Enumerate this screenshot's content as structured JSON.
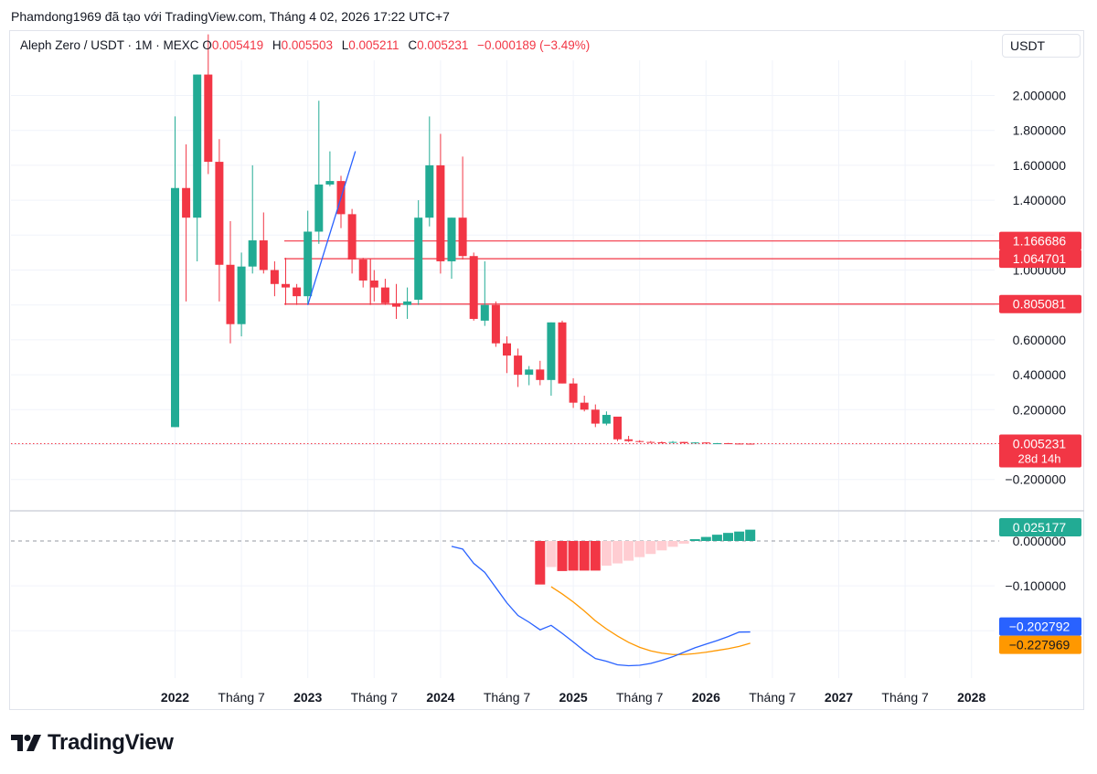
{
  "header": {
    "credit": "Phamdong1969 đã tạo với TradingView.com, Tháng 4 02, 2026 17:22 UTC+7"
  },
  "legend": {
    "symbol": "Aleph Zero / USDT · 1M · MEXC",
    "o_key": "O",
    "o": "0.005419",
    "h_key": "H",
    "h": "0.005503",
    "l_key": "L",
    "l": "0.005211",
    "c_key": "C",
    "c": "0.005231",
    "change": "−0.000189 (−3.49%)"
  },
  "currency_button": "USDT",
  "logo": {
    "text": "TradingView"
  },
  "colors": {
    "up": "#22ab94",
    "down": "#f23645",
    "macd": "#2962ff",
    "signal": "#ff9800",
    "hist_down_light": "#ffcdd2"
  },
  "chart_data": [
    {
      "type": "candlestick",
      "title": "Aleph Zero / USDT · 1M · MEXC",
      "ylim": [
        -0.25,
        2.2
      ],
      "y_ticks": [
        "2.000000",
        "1.800000",
        "1.600000",
        "1.400000",
        "1.000000",
        "0.600000",
        "0.400000",
        "0.200000",
        "−0.200000"
      ],
      "y_tick_values": [
        2.0,
        1.8,
        1.6,
        1.4,
        1.0,
        0.6,
        0.4,
        0.2,
        -0.2
      ],
      "x_labels": [
        "2022",
        "Tháng 7",
        "2023",
        "Tháng 7",
        "2024",
        "Tháng 7",
        "2025",
        "Tháng 7",
        "2026",
        "Tháng 7",
        "2027",
        "Tháng 7",
        "2028"
      ],
      "x_label_months": [
        0,
        6,
        12,
        18,
        24,
        30,
        36,
        42,
        48,
        54,
        60,
        66,
        72
      ],
      "candles": [
        {
          "m": 0,
          "o": 0.1,
          "h": 1.88,
          "l": 0.1,
          "c": 1.47
        },
        {
          "m": 1,
          "o": 1.47,
          "h": 1.72,
          "l": 0.82,
          "c": 1.3
        },
        {
          "m": 2,
          "o": 1.3,
          "h": 2.12,
          "l": 1.05,
          "c": 2.12
        },
        {
          "m": 3,
          "o": 2.12,
          "h": 2.35,
          "l": 1.55,
          "c": 1.62
        },
        {
          "m": 4,
          "o": 1.62,
          "h": 1.75,
          "l": 0.82,
          "c": 1.03
        },
        {
          "m": 5,
          "o": 1.03,
          "h": 1.28,
          "l": 0.58,
          "c": 0.69
        },
        {
          "m": 6,
          "o": 0.69,
          "h": 1.1,
          "l": 0.62,
          "c": 1.02
        },
        {
          "m": 7,
          "o": 1.02,
          "h": 1.6,
          "l": 0.98,
          "c": 1.17
        },
        {
          "m": 8,
          "o": 1.17,
          "h": 1.33,
          "l": 0.98,
          "c": 1.0
        },
        {
          "m": 9,
          "o": 1.0,
          "h": 1.05,
          "l": 0.85,
          "c": 0.92
        },
        {
          "m": 10,
          "o": 0.92,
          "h": 1.07,
          "l": 0.8,
          "c": 0.9
        },
        {
          "m": 11,
          "o": 0.9,
          "h": 0.92,
          "l": 0.8,
          "c": 0.85
        },
        {
          "m": 12,
          "o": 0.85,
          "h": 1.34,
          "l": 0.8,
          "c": 1.22
        },
        {
          "m": 13,
          "o": 1.22,
          "h": 1.97,
          "l": 1.15,
          "c": 1.49
        },
        {
          "m": 14,
          "o": 1.49,
          "h": 1.68,
          "l": 1.48,
          "c": 1.51
        },
        {
          "m": 15,
          "o": 1.51,
          "h": 1.54,
          "l": 1.24,
          "c": 1.32
        },
        {
          "m": 16,
          "o": 1.32,
          "h": 1.35,
          "l": 0.98,
          "c": 1.06
        },
        {
          "m": 17,
          "o": 1.06,
          "h": 1.07,
          "l": 0.9,
          "c": 0.94
        },
        {
          "m": 18,
          "o": 0.94,
          "h": 1.0,
          "l": 0.82,
          "c": 0.9
        },
        {
          "m": 19,
          "o": 0.9,
          "h": 0.95,
          "l": 0.8,
          "c": 0.81
        },
        {
          "m": 20,
          "o": 0.81,
          "h": 0.92,
          "l": 0.72,
          "c": 0.79
        },
        {
          "m": 21,
          "o": 0.8,
          "h": 0.9,
          "l": 0.72,
          "c": 0.82
        },
        {
          "m": 22,
          "o": 0.83,
          "h": 1.4,
          "l": 0.8,
          "c": 1.3
        },
        {
          "m": 23,
          "o": 1.3,
          "h": 1.88,
          "l": 1.25,
          "c": 1.6
        },
        {
          "m": 24,
          "o": 1.6,
          "h": 1.78,
          "l": 0.98,
          "c": 1.05
        },
        {
          "m": 25,
          "o": 1.05,
          "h": 1.3,
          "l": 0.95,
          "c": 1.3
        },
        {
          "m": 26,
          "o": 1.3,
          "h": 1.65,
          "l": 1.06,
          "c": 1.08
        },
        {
          "m": 27,
          "o": 1.08,
          "h": 1.1,
          "l": 0.71,
          "c": 0.72
        },
        {
          "m": 28,
          "o": 0.71,
          "h": 1.05,
          "l": 0.68,
          "c": 0.8
        },
        {
          "m": 29,
          "o": 0.8,
          "h": 0.82,
          "l": 0.56,
          "c": 0.58
        },
        {
          "m": 30,
          "o": 0.58,
          "h": 0.62,
          "l": 0.41,
          "c": 0.51
        },
        {
          "m": 31,
          "o": 0.51,
          "h": 0.55,
          "l": 0.33,
          "c": 0.4
        },
        {
          "m": 32,
          "o": 0.4,
          "h": 0.45,
          "l": 0.34,
          "c": 0.43
        },
        {
          "m": 33,
          "o": 0.43,
          "h": 0.48,
          "l": 0.34,
          "c": 0.37
        },
        {
          "m": 34,
          "o": 0.37,
          "h": 0.7,
          "l": 0.28,
          "c": 0.7
        },
        {
          "m": 35,
          "o": 0.7,
          "h": 0.71,
          "l": 0.35,
          "c": 0.35
        },
        {
          "m": 36,
          "o": 0.35,
          "h": 0.38,
          "l": 0.21,
          "c": 0.24
        },
        {
          "m": 37,
          "o": 0.24,
          "h": 0.28,
          "l": 0.19,
          "c": 0.2
        },
        {
          "m": 38,
          "o": 0.2,
          "h": 0.23,
          "l": 0.1,
          "c": 0.12
        },
        {
          "m": 39,
          "o": 0.12,
          "h": 0.19,
          "l": 0.11,
          "c": 0.17
        },
        {
          "m": 40,
          "o": 0.16,
          "h": 0.16,
          "l": 0.02,
          "c": 0.03
        },
        {
          "m": 41,
          "o": 0.03,
          "h": 0.05,
          "l": 0.015,
          "c": 0.02
        },
        {
          "m": 42,
          "o": 0.02,
          "h": 0.025,
          "l": 0.012,
          "c": 0.015
        },
        {
          "m": 43,
          "o": 0.015,
          "h": 0.02,
          "l": 0.011,
          "c": 0.013
        },
        {
          "m": 44,
          "o": 0.013,
          "h": 0.018,
          "l": 0.01,
          "c": 0.012
        },
        {
          "m": 45,
          "o": 0.012,
          "h": 0.02,
          "l": 0.009,
          "c": 0.015
        },
        {
          "m": 46,
          "o": 0.015,
          "h": 0.016,
          "l": 0.007,
          "c": 0.008
        },
        {
          "m": 47,
          "o": 0.008,
          "h": 0.014,
          "l": 0.007,
          "c": 0.012
        },
        {
          "m": 48,
          "o": 0.012,
          "h": 0.013,
          "l": 0.006,
          "c": 0.007
        },
        {
          "m": 49,
          "o": 0.007,
          "h": 0.009,
          "l": 0.006,
          "c": 0.008
        },
        {
          "m": 50,
          "o": 0.008,
          "h": 0.009,
          "l": 0.005,
          "c": 0.006
        },
        {
          "m": 51,
          "o": 0.006,
          "h": 0.007,
          "l": 0.005,
          "c": 0.0055
        },
        {
          "m": 52,
          "o": 0.005419,
          "h": 0.005503,
          "l": 0.005211,
          "c": 0.005231
        }
      ],
      "horizontal_lines": [
        {
          "value": 1.166686,
          "label": "1.166686"
        },
        {
          "value": 1.064701,
          "label": "1.064701"
        },
        {
          "value": 0.805081,
          "label": "0.805081"
        }
      ],
      "extra_lines": [
        {
          "from": {
            "m": 17,
            "v": 0.8
          },
          "to": {
            "m": 17,
            "v": 1.064701
          }
        }
      ],
      "trendline": {
        "from": {
          "m": 12,
          "v": 0.8
        },
        "to": {
          "m": 16.3,
          "v": 1.68
        }
      },
      "last_price": {
        "value": 0.005231,
        "label": "0.005231",
        "countdown": "28d 14h"
      }
    },
    {
      "type": "macd",
      "ylim": [
        -0.3,
        0.06
      ],
      "y_ticks": [
        "0.000000",
        "−0.100000"
      ],
      "y_tick_values": [
        0.0,
        -0.1
      ],
      "histogram": [
        {
          "m": 33,
          "v": -0.097,
          "strong": true
        },
        {
          "m": 34,
          "v": -0.058,
          "strong": false
        },
        {
          "m": 35,
          "v": -0.067,
          "strong": true
        },
        {
          "m": 36,
          "v": -0.066,
          "strong": true
        },
        {
          "m": 37,
          "v": -0.066,
          "strong": true
        },
        {
          "m": 38,
          "v": -0.066,
          "strong": true
        },
        {
          "m": 39,
          "v": -0.055,
          "strong": false
        },
        {
          "m": 40,
          "v": -0.05,
          "strong": false
        },
        {
          "m": 41,
          "v": -0.044,
          "strong": false
        },
        {
          "m": 42,
          "v": -0.036,
          "strong": false
        },
        {
          "m": 43,
          "v": -0.029,
          "strong": false
        },
        {
          "m": 44,
          "v": -0.021,
          "strong": false
        },
        {
          "m": 45,
          "v": -0.013,
          "strong": false
        },
        {
          "m": 46,
          "v": -0.006,
          "strong": false
        },
        {
          "m": 47,
          "v": 0.004,
          "strong": true
        },
        {
          "m": 48,
          "v": 0.009,
          "strong": true
        },
        {
          "m": 49,
          "v": 0.014,
          "strong": true
        },
        {
          "m": 50,
          "v": 0.018,
          "strong": true
        },
        {
          "m": 51,
          "v": 0.021,
          "strong": true
        },
        {
          "m": 52,
          "v": 0.025177,
          "strong": true
        }
      ],
      "macd_line": [
        {
          "m": 25,
          "v": -0.012
        },
        {
          "m": 26,
          "v": -0.018
        },
        {
          "m": 27,
          "v": -0.05
        },
        {
          "m": 28,
          "v": -0.07
        },
        {
          "m": 29,
          "v": -0.104
        },
        {
          "m": 30,
          "v": -0.138
        },
        {
          "m": 31,
          "v": -0.166
        },
        {
          "m": 32,
          "v": -0.181
        },
        {
          "m": 33,
          "v": -0.198
        },
        {
          "m": 34,
          "v": -0.188
        },
        {
          "m": 35,
          "v": -0.206
        },
        {
          "m": 36,
          "v": -0.225
        },
        {
          "m": 37,
          "v": -0.245
        },
        {
          "m": 38,
          "v": -0.262
        },
        {
          "m": 39,
          "v": -0.268
        },
        {
          "m": 40,
          "v": -0.276
        },
        {
          "m": 41,
          "v": -0.278
        },
        {
          "m": 42,
          "v": -0.277
        },
        {
          "m": 43,
          "v": -0.273
        },
        {
          "m": 44,
          "v": -0.266
        },
        {
          "m": 45,
          "v": -0.258
        },
        {
          "m": 46,
          "v": -0.248
        },
        {
          "m": 47,
          "v": -0.238
        },
        {
          "m": 48,
          "v": -0.23
        },
        {
          "m": 49,
          "v": -0.222
        },
        {
          "m": 50,
          "v": -0.213
        },
        {
          "m": 51,
          "v": -0.203
        },
        {
          "m": 52,
          "v": -0.202792
        }
      ],
      "signal_line": [
        {
          "m": 34,
          "v": -0.102
        },
        {
          "m": 35,
          "v": -0.118
        },
        {
          "m": 36,
          "v": -0.136
        },
        {
          "m": 37,
          "v": -0.156
        },
        {
          "m": 38,
          "v": -0.178
        },
        {
          "m": 39,
          "v": -0.196
        },
        {
          "m": 40,
          "v": -0.212
        },
        {
          "m": 41,
          "v": -0.226
        },
        {
          "m": 42,
          "v": -0.237
        },
        {
          "m": 43,
          "v": -0.245
        },
        {
          "m": 44,
          "v": -0.25
        },
        {
          "m": 45,
          "v": -0.253
        },
        {
          "m": 46,
          "v": -0.253
        },
        {
          "m": 47,
          "v": -0.251
        },
        {
          "m": 48,
          "v": -0.248
        },
        {
          "m": 49,
          "v": -0.244
        },
        {
          "m": 50,
          "v": -0.24
        },
        {
          "m": 51,
          "v": -0.235
        },
        {
          "m": 52,
          "v": -0.227969
        }
      ],
      "labels": {
        "histogram": "0.025177",
        "macd": "−0.202792",
        "signal": "−0.227969"
      }
    }
  ]
}
